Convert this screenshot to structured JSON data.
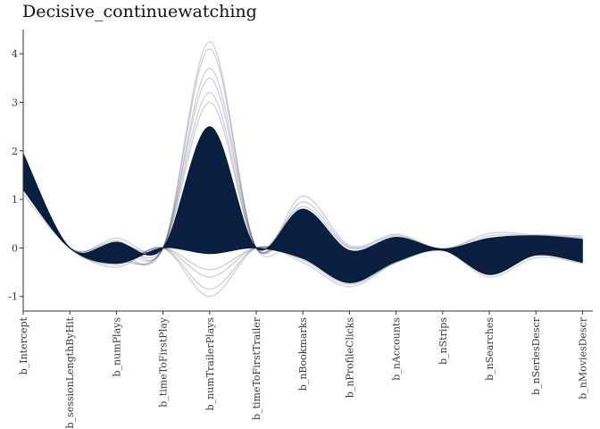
{
  "chart_data": {
    "type": "line",
    "title": "Decisive_continuewatching",
    "xlabel": "",
    "ylabel": "",
    "ylim": [
      -1.3,
      4.5
    ],
    "yticks": [
      -1,
      0,
      1,
      2,
      3,
      4
    ],
    "categories": [
      "b_Intercept",
      "b_sessionLengthByHit",
      "b_numPlays",
      "b_timeToFirstPlay",
      "b_numTrailerPlays",
      "b_timeToFirstTrailer",
      "b_nBookmarks",
      "b_nProfileClicks",
      "b_nAccounts",
      "b_nStrips",
      "b_nSearches",
      "b_nSeriesDescr",
      "b_nMoviesDescr"
    ],
    "band": {
      "upper": [
        1.95,
        0.0,
        0.12,
        0.0,
        2.5,
        0.0,
        0.8,
        -0.05,
        0.22,
        -0.02,
        0.2,
        0.25,
        0.18
      ],
      "lower": [
        1.2,
        0.0,
        -0.32,
        0.0,
        -0.12,
        0.0,
        -0.22,
        -0.72,
        -0.28,
        -0.05,
        -0.55,
        -0.15,
        -0.3
      ]
    },
    "series": [
      {
        "values": [
          1.6,
          0.0,
          0.0,
          0.0,
          3.7,
          0.0,
          0.3,
          -0.3,
          0.0,
          -0.03,
          -0.1,
          0.1,
          0.0
        ]
      },
      {
        "values": [
          1.5,
          0.0,
          -0.1,
          0.0,
          4.25,
          0.0,
          1.07,
          0.05,
          0.28,
          -0.02,
          0.3,
          0.27,
          0.25
        ]
      },
      {
        "values": [
          1.7,
          0.0,
          0.15,
          0.0,
          4.1,
          0.0,
          0.95,
          0.02,
          0.25,
          -0.02,
          0.25,
          0.25,
          0.22
        ]
      },
      {
        "values": [
          1.3,
          0.0,
          -0.2,
          0.0,
          3.5,
          0.0,
          0.6,
          -0.4,
          0.1,
          -0.03,
          0.0,
          0.2,
          0.1
        ]
      },
      {
        "values": [
          1.8,
          0.0,
          0.05,
          0.0,
          3.0,
          0.0,
          0.5,
          -0.3,
          0.05,
          -0.03,
          -0.2,
          0.15,
          0.05
        ]
      },
      {
        "values": [
          1.4,
          0.0,
          -0.25,
          0.0,
          3.2,
          0.0,
          0.7,
          -0.2,
          0.15,
          -0.02,
          0.1,
          0.2,
          0.15
        ]
      },
      {
        "values": [
          1.1,
          0.0,
          -0.4,
          0.0,
          -1.0,
          0.0,
          -0.3,
          -0.8,
          -0.3,
          -0.05,
          -0.6,
          -0.2,
          -0.32
        ]
      },
      {
        "values": [
          1.2,
          0.0,
          -0.35,
          0.0,
          -0.85,
          0.0,
          -0.25,
          -0.75,
          -0.3,
          -0.05,
          -0.5,
          -0.15,
          -0.3
        ]
      },
      {
        "values": [
          1.5,
          0.0,
          -0.3,
          0.0,
          -0.6,
          0.0,
          -0.2,
          -0.7,
          -0.25,
          -0.04,
          -0.45,
          -0.1,
          -0.25
        ]
      },
      {
        "values": [
          1.25,
          0.0,
          -0.3,
          0.0,
          -0.45,
          0.0,
          -0.15,
          -0.7,
          -0.2,
          -0.04,
          -0.4,
          -0.1,
          -0.2
        ]
      },
      {
        "values": [
          1.9,
          0.0,
          0.2,
          0.0,
          2.3,
          0.0,
          0.85,
          0.0,
          0.2,
          -0.02,
          0.2,
          0.25,
          0.2
        ]
      },
      {
        "values": [
          1.35,
          0.0,
          0.1,
          0.0,
          1.8,
          0.0,
          0.4,
          -0.5,
          -0.1,
          -0.04,
          -0.3,
          0.05,
          -0.1
        ]
      }
    ],
    "colors": {
      "band": "#03183a",
      "line": "#1b2a4a",
      "axis": "#333333",
      "tick_text": "#3a3a3a"
    },
    "grid": false,
    "legend": "none"
  }
}
